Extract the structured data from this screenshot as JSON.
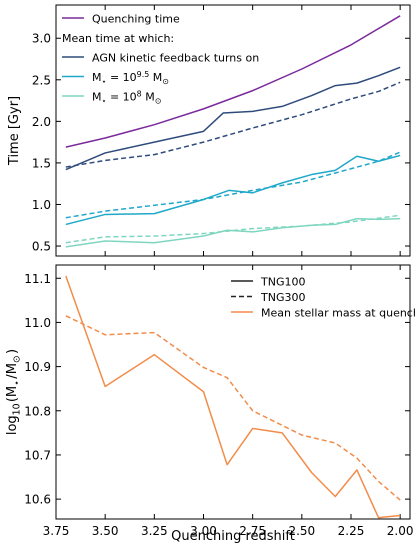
{
  "chart_data": [
    {
      "type": "line",
      "panel": "top",
      "title": "",
      "xlabel": "",
      "ylabel": "Time [Gyr]",
      "xlim": [
        3.75,
        1.95
      ],
      "ylim": [
        0.38,
        3.4
      ],
      "x_reversed": true,
      "yticks": [
        0.5,
        1.0,
        1.5,
        2.0,
        2.5,
        3.0
      ],
      "ytick_labels": [
        "0.5",
        "1.0",
        "1.5",
        "2.0",
        "2.5",
        "3.0"
      ],
      "grid": false,
      "legend": {
        "placement": "top-left",
        "entries": [
          {
            "label": "Quenching time",
            "color": "#7b2a9c",
            "style": "solid"
          },
          {
            "label": "Mean time at which:",
            "color": null,
            "style": "none"
          },
          {
            "label": "AGN kinetic feedback turns on",
            "color": "#2f4b7c",
            "style": "solid"
          },
          {
            "label": "$M_\\star = 10^{9.5}\\,\\mathrm{M}_\\odot$",
            "color": "#1fa8c9",
            "style": "solid"
          },
          {
            "label": "$M_\\star = 10^{8}\\,\\mathrm{M}_\\odot$",
            "color": "#7fd6c0",
            "style": "solid"
          }
        ]
      },
      "series": [
        {
          "name": "Quenching time",
          "color": "#7b2a9c",
          "dash": "solid",
          "x": [
            3.7,
            3.5,
            3.25,
            3.0,
            2.75,
            2.5,
            2.25,
            2.0
          ],
          "y": [
            1.69,
            1.8,
            1.96,
            2.15,
            2.37,
            2.63,
            2.92,
            3.27
          ]
        },
        {
          "name": "AGN kinetic feedback turns on (TNG100)",
          "color": "#2f4b7c",
          "dash": "solid",
          "x": [
            3.7,
            3.5,
            3.25,
            3.0,
            2.9,
            2.75,
            2.6,
            2.45,
            2.33,
            2.22,
            2.11,
            2.0
          ],
          "y": [
            1.42,
            1.62,
            1.75,
            1.88,
            2.1,
            2.12,
            2.18,
            2.31,
            2.43,
            2.46,
            2.55,
            2.65
          ]
        },
        {
          "name": "AGN kinetic feedback turns on (TNG300)",
          "color": "#2f4b7c",
          "dash": "dashed",
          "x": [
            3.7,
            3.5,
            3.25,
            3.0,
            2.75,
            2.5,
            2.25,
            2.11,
            2.0
          ],
          "y": [
            1.45,
            1.53,
            1.6,
            1.75,
            1.92,
            2.08,
            2.27,
            2.36,
            2.47
          ]
        },
        {
          "name": "M* = 10^9.5 (TNG100)",
          "color": "#1fa8c9",
          "dash": "solid",
          "x": [
            3.7,
            3.5,
            3.25,
            3.0,
            2.87,
            2.75,
            2.6,
            2.45,
            2.33,
            2.22,
            2.11,
            2.0
          ],
          "y": [
            0.76,
            0.88,
            0.89,
            1.06,
            1.17,
            1.14,
            1.26,
            1.36,
            1.41,
            1.58,
            1.52,
            1.59
          ]
        },
        {
          "name": "M* = 10^9.5 (TNG300)",
          "color": "#1fa8c9",
          "dash": "dashed",
          "x": [
            3.7,
            3.5,
            3.25,
            3.0,
            2.75,
            2.5,
            2.25,
            2.11,
            2.0
          ],
          "y": [
            0.84,
            0.92,
            0.99,
            1.06,
            1.17,
            1.27,
            1.43,
            1.52,
            1.63
          ]
        },
        {
          "name": "M* = 10^8 (TNG100)",
          "color": "#7fd6c0",
          "dash": "solid",
          "x": [
            3.7,
            3.5,
            3.25,
            3.0,
            2.88,
            2.75,
            2.6,
            2.45,
            2.33,
            2.22,
            2.11,
            2.0
          ],
          "y": [
            0.49,
            0.56,
            0.54,
            0.62,
            0.69,
            0.67,
            0.72,
            0.75,
            0.76,
            0.83,
            0.82,
            0.83
          ]
        },
        {
          "name": "M* = 10^8 (TNG300)",
          "color": "#7fd6c0",
          "dash": "dashed",
          "x": [
            3.7,
            3.5,
            3.25,
            3.0,
            2.75,
            2.5,
            2.25,
            2.0
          ],
          "y": [
            0.54,
            0.61,
            0.62,
            0.65,
            0.71,
            0.74,
            0.79,
            0.87
          ]
        }
      ]
    },
    {
      "type": "line",
      "panel": "bottom",
      "title": "",
      "xlabel": "Quenching redshift",
      "ylabel": "log$_{10}$($M_\\star$/M$_\\odot$)",
      "xlim": [
        3.75,
        1.95
      ],
      "ylim": [
        10.555,
        11.13
      ],
      "x_reversed": true,
      "xticks": [
        3.75,
        3.5,
        3.25,
        3.0,
        2.75,
        2.5,
        2.25,
        2.0
      ],
      "xtick_labels": [
        "3.75",
        "3.50",
        "3.25",
        "3.00",
        "2.75",
        "2.50",
        "2.25",
        "2.00"
      ],
      "yticks": [
        10.6,
        10.7,
        10.8,
        10.9,
        11.0,
        11.1
      ],
      "ytick_labels": [
        "10.6",
        "10.7",
        "10.8",
        "10.9",
        "11.0",
        "11.1"
      ],
      "grid": false,
      "legend": {
        "placement": "top-right",
        "entries": [
          {
            "label": "TNG100",
            "color": "#222222",
            "style": "solid"
          },
          {
            "label": "TNG300",
            "color": "#222222",
            "style": "dashed"
          },
          {
            "label": "Mean stellar mass at quenching",
            "color": "#f28c4a",
            "style": "solid"
          }
        ]
      },
      "series": [
        {
          "name": "Mean stellar mass at quenching (TNG100)",
          "color": "#f28c4a",
          "dash": "solid",
          "x": [
            3.7,
            3.5,
            3.25,
            3.0,
            2.88,
            2.75,
            2.6,
            2.45,
            2.33,
            2.22,
            2.11,
            2.0
          ],
          "y": [
            11.105,
            10.855,
            10.927,
            10.843,
            10.678,
            10.76,
            10.75,
            10.66,
            10.606,
            10.666,
            10.558,
            10.563
          ]
        },
        {
          "name": "Mean stellar mass at quenching (TNG300)",
          "color": "#f28c4a",
          "dash": "dashed",
          "x": [
            3.7,
            3.5,
            3.25,
            3.0,
            2.88,
            2.75,
            2.5,
            2.33,
            2.22,
            2.11,
            2.0
          ],
          "y": [
            11.015,
            10.972,
            10.977,
            10.898,
            10.875,
            10.8,
            10.745,
            10.727,
            10.693,
            10.64,
            10.598
          ]
        }
      ]
    }
  ]
}
